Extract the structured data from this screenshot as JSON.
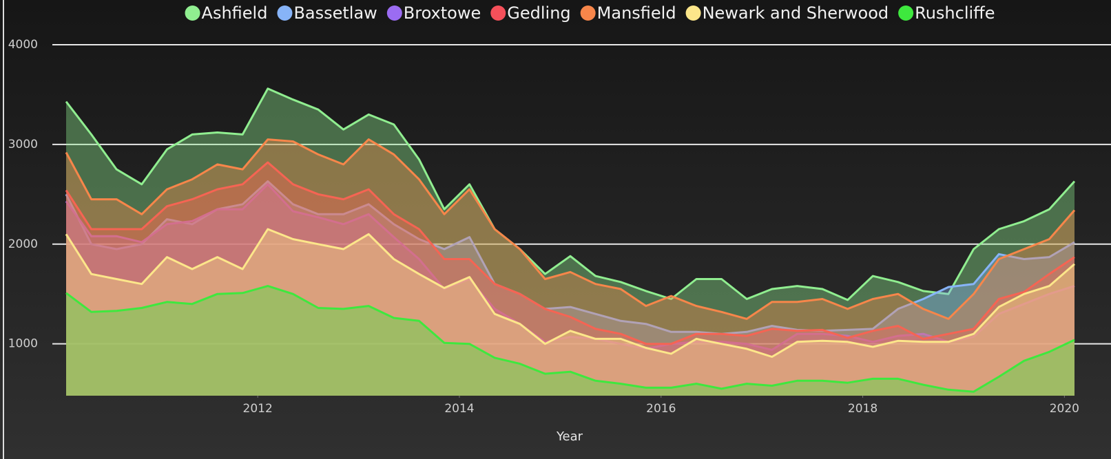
{
  "chart_data": {
    "type": "area",
    "x_label": "Year",
    "legend": "top",
    "grid": true,
    "x": [
      2010.1,
      2010.35,
      2010.6,
      2010.85,
      2011.1,
      2011.35,
      2011.6,
      2011.85,
      2012.1,
      2012.35,
      2012.6,
      2012.85,
      2013.1,
      2013.35,
      2013.6,
      2013.85,
      2014.1,
      2014.35,
      2014.6,
      2014.85,
      2015.1,
      2015.35,
      2015.6,
      2015.85,
      2016.1,
      2016.35,
      2016.6,
      2016.85,
      2017.1,
      2017.35,
      2017.6,
      2017.85,
      2018.1,
      2018.35,
      2018.6,
      2018.85,
      2019.1,
      2019.35,
      2019.6,
      2019.85,
      2020.1
    ],
    "xlim": [
      2010.1,
      2020.1
    ],
    "xticks": [
      2012,
      2014,
      2016,
      2018,
      2020
    ],
    "ylim": [
      480,
      4000
    ],
    "yticks": [
      1000,
      2000,
      3000,
      4000
    ],
    "series": [
      {
        "name": "Ashfield",
        "color": "#90ee90",
        "values": [
          3430,
          3100,
          2750,
          2600,
          2950,
          3100,
          3120,
          3100,
          3560,
          3450,
          3350,
          3150,
          3300,
          3200,
          2850,
          2350,
          2600,
          2150,
          1950,
          1700,
          1880,
          1680,
          1620,
          1530,
          1450,
          1650,
          1650,
          1450,
          1550,
          1580,
          1550,
          1440,
          1680,
          1620,
          1530,
          1500,
          1950,
          2150,
          2230,
          2350,
          2630
        ]
      },
      {
        "name": "Bassetlaw",
        "color": "#87b4f8",
        "values": [
          2500,
          2000,
          1950,
          2000,
          2250,
          2200,
          2350,
          2400,
          2630,
          2400,
          2300,
          2300,
          2400,
          2200,
          2050,
          1950,
          2070,
          1600,
          1500,
          1350,
          1370,
          1300,
          1230,
          1200,
          1120,
          1120,
          1100,
          1120,
          1180,
          1140,
          1130,
          1140,
          1150,
          1350,
          1450,
          1570,
          1600,
          1900,
          1850,
          1870,
          2020
        ]
      },
      {
        "name": "Broxtowe",
        "color": "#9b6cf2",
        "values": [
          2430,
          2080,
          2080,
          2020,
          2200,
          2230,
          2350,
          2350,
          2600,
          2330,
          2270,
          2200,
          2300,
          2070,
          1850,
          1550,
          1650,
          1350,
          1200,
          1020,
          1070,
          1050,
          1000,
          950,
          1000,
          1020,
          1020,
          1000,
          940,
          1100,
          1100,
          1080,
          1020,
          1080,
          1100,
          1020,
          1070,
          1300,
          1400,
          1500,
          1580
        ]
      },
      {
        "name": "Gedling",
        "color": "#f5505a",
        "values": [
          2540,
          2150,
          2150,
          2150,
          2380,
          2450,
          2550,
          2600,
          2820,
          2600,
          2500,
          2450,
          2550,
          2300,
          2150,
          1850,
          1850,
          1600,
          1500,
          1350,
          1270,
          1150,
          1100,
          1000,
          1000,
          1100,
          1100,
          1080,
          1150,
          1130,
          1140,
          1060,
          1130,
          1180,
          1050,
          1100,
          1150,
          1450,
          1520,
          1700,
          1870
        ]
      },
      {
        "name": "Mansfield",
        "color": "#f7864a",
        "values": [
          2920,
          2450,
          2450,
          2300,
          2550,
          2650,
          2800,
          2750,
          3050,
          3030,
          2900,
          2800,
          3050,
          2900,
          2650,
          2300,
          2550,
          2150,
          1950,
          1650,
          1720,
          1600,
          1550,
          1380,
          1480,
          1380,
          1320,
          1250,
          1420,
          1420,
          1450,
          1350,
          1450,
          1500,
          1350,
          1250,
          1500,
          1850,
          1950,
          2050,
          2340
        ]
      },
      {
        "name": "Newark and Sherwood",
        "color": "#fce68a",
        "values": [
          2100,
          1700,
          1650,
          1600,
          1870,
          1750,
          1870,
          1750,
          2150,
          2050,
          2000,
          1950,
          2100,
          1850,
          1700,
          1560,
          1670,
          1300,
          1200,
          1000,
          1130,
          1050,
          1050,
          960,
          900,
          1050,
          1000,
          950,
          870,
          1020,
          1030,
          1020,
          970,
          1030,
          1020,
          1020,
          1100,
          1370,
          1500,
          1580,
          1800
        ]
      },
      {
        "name": "Rushcliffe",
        "color": "#3ee83e",
        "values": [
          1510,
          1320,
          1330,
          1360,
          1420,
          1400,
          1500,
          1510,
          1580,
          1500,
          1360,
          1350,
          1380,
          1260,
          1230,
          1010,
          1000,
          860,
          800,
          700,
          720,
          630,
          600,
          560,
          560,
          600,
          550,
          600,
          580,
          630,
          630,
          610,
          650,
          650,
          590,
          540,
          520,
          670,
          830,
          920,
          1040
        ]
      }
    ]
  }
}
